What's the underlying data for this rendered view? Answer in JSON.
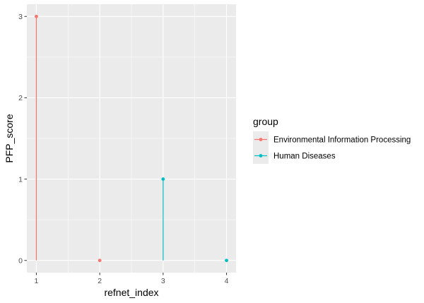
{
  "chart_data": {
    "type": "scatter",
    "style": "lollipop",
    "xlabel": "refnet_index",
    "ylabel": "PFP_score",
    "x_ticks": [
      1,
      2,
      3,
      4
    ],
    "y_ticks": [
      0,
      1,
      2,
      3
    ],
    "xlim": [
      0.85,
      4.15
    ],
    "ylim": [
      -0.15,
      3.15
    ],
    "grid": true,
    "legend": {
      "title": "group",
      "placement": "right"
    },
    "series": [
      {
        "name": "Environmental Information Processing",
        "color": "#F8766D",
        "points": [
          {
            "x": 1,
            "y": 3
          },
          {
            "x": 2,
            "y": 0
          }
        ]
      },
      {
        "name": "Human Diseases",
        "color": "#00BFC4",
        "points": [
          {
            "x": 3,
            "y": 1
          },
          {
            "x": 4,
            "y": 0
          }
        ]
      }
    ]
  }
}
